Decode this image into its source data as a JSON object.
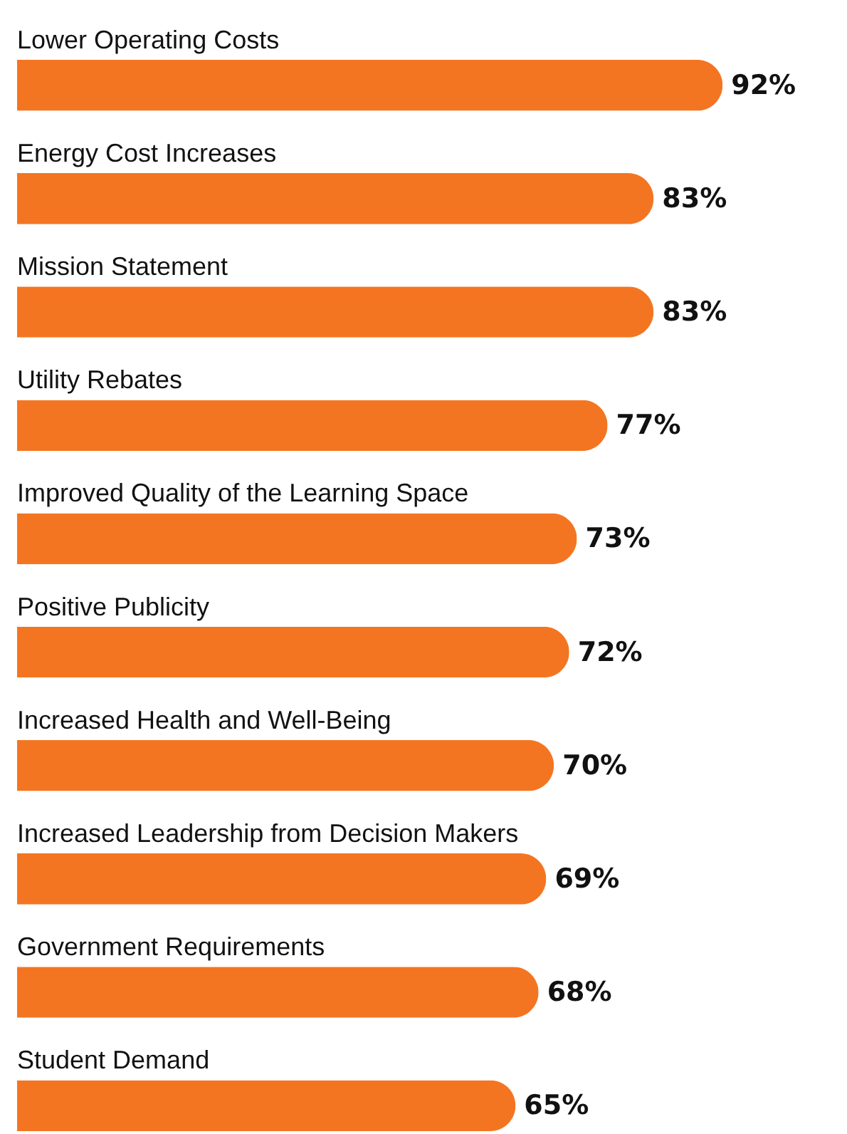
{
  "chart_data": {
    "type": "bar",
    "orientation": "horizontal",
    "data_labels": true,
    "categories": [
      "Lower Operating Costs",
      "Energy Cost Increases",
      "Mission Statement",
      "Utility Rebates",
      "Improved Quality of the Learning Space",
      "Positive Publicity",
      "Increased Health and Well-Being",
      "Increased Leadership from Decision Makers",
      "Government Requirements",
      "Student Demand"
    ],
    "values": [
      92,
      83,
      83,
      77,
      73,
      72,
      70,
      69,
      68,
      65
    ],
    "value_labels": [
      "92%",
      "83%",
      "83%",
      "77%",
      "73%",
      "72%",
      "70%",
      "69%",
      "68%",
      "65%"
    ],
    "color": "#f47521"
  }
}
